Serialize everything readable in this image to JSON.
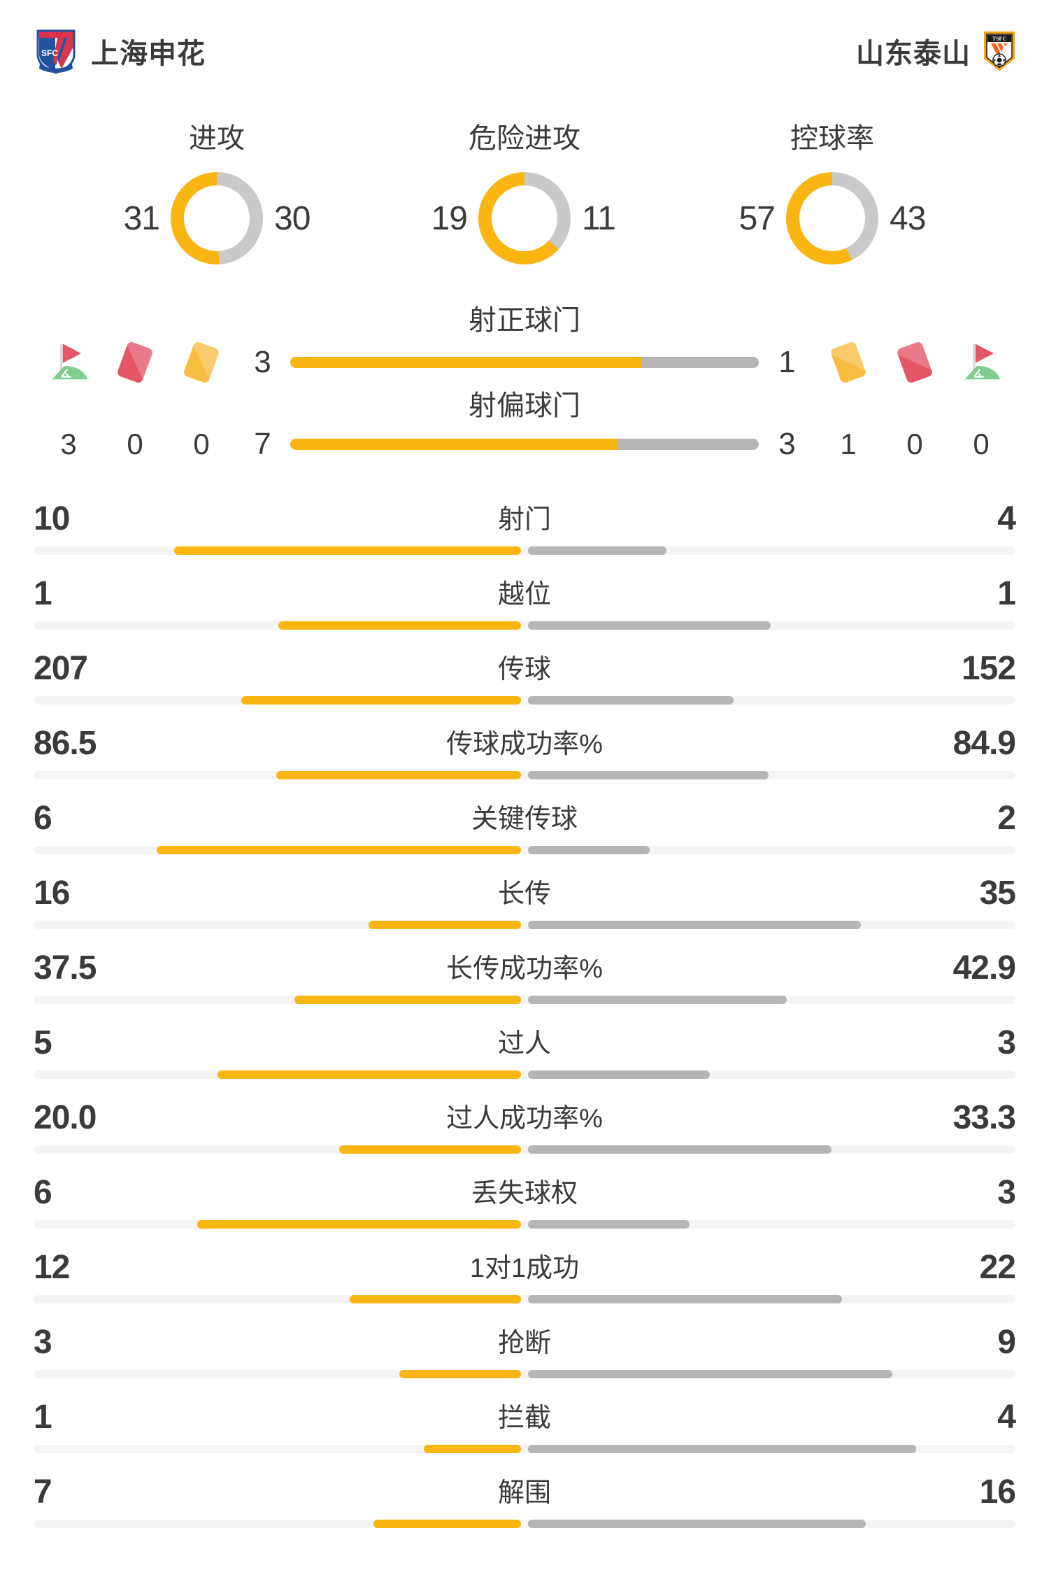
{
  "teams": {
    "home": {
      "name": "上海申花",
      "logo": "shanghai-shenhua-crest"
    },
    "away": {
      "name": "山东泰山",
      "logo": "shandong-taishan-crest"
    }
  },
  "donuts": [
    {
      "key": "attacks",
      "label": "进攻",
      "home": 31,
      "away": 30
    },
    {
      "key": "dangerous-attacks",
      "label": "危险进攻",
      "home": 19,
      "away": 11
    },
    {
      "key": "possession",
      "label": "控球率",
      "home": 57,
      "away": 43
    }
  ],
  "shots": {
    "rows": [
      {
        "key": "shots-on-target",
        "label": "射正球门",
        "home": "3",
        "away": "1"
      },
      {
        "key": "shots-off-target",
        "label": "射偏球门",
        "home": "7",
        "away": "3"
      }
    ],
    "cards_left": [
      {
        "icon": "corner-flag-icon",
        "value": "3"
      },
      {
        "icon": "red-card-icon",
        "value": "0"
      },
      {
        "icon": "yellow-card-icon",
        "value": "0"
      }
    ],
    "cards_right": [
      {
        "icon": "yellow-card-icon",
        "value": "1"
      },
      {
        "icon": "red-card-icon",
        "value": "0"
      },
      {
        "icon": "corner-flag-icon",
        "value": "0"
      }
    ]
  },
  "stats": [
    {
      "key": "shots",
      "label": "射门",
      "home": "10",
      "away": "4"
    },
    {
      "key": "offsides",
      "label": "越位",
      "home": "1",
      "away": "1"
    },
    {
      "key": "passes",
      "label": "传球",
      "home": "207",
      "away": "152"
    },
    {
      "key": "pass-success-rate",
      "label": "传球成功率%",
      "home": "86.5",
      "away": "84.9"
    },
    {
      "key": "key-passes",
      "label": "关键传球",
      "home": "6",
      "away": "2"
    },
    {
      "key": "long-balls",
      "label": "长传",
      "home": "16",
      "away": "35"
    },
    {
      "key": "long-ball-success-rate",
      "label": "长传成功率%",
      "home": "37.5",
      "away": "42.9"
    },
    {
      "key": "dribbles",
      "label": "过人",
      "home": "5",
      "away": "3"
    },
    {
      "key": "dribble-success-rate",
      "label": "过人成功率%",
      "home": "20.0",
      "away": "33.3"
    },
    {
      "key": "possession-lost",
      "label": "丢失球权",
      "home": "6",
      "away": "3"
    },
    {
      "key": "one-on-one-won",
      "label": "1对1成功",
      "home": "12",
      "away": "22"
    },
    {
      "key": "tackles",
      "label": "抢断",
      "home": "3",
      "away": "9"
    },
    {
      "key": "interceptions",
      "label": "拦截",
      "home": "1",
      "away": "4"
    },
    {
      "key": "clearances",
      "label": "解围",
      "home": "7",
      "away": "16"
    }
  ],
  "colors": {
    "yellow": "#F9B512",
    "card_yellow": "#F8BC40",
    "red": "#E45565",
    "green": "#80CB8E",
    "pole": "#D8D8D8",
    "bar_gray": "#B5B5B5",
    "donut_gray": "#C9C9C9",
    "track": "#F4F4F5",
    "text": "#3A3A3A"
  },
  "chart_data": [
    {
      "type": "pie",
      "title": "进攻",
      "labels": [
        "上海申花",
        "山东泰山"
      ],
      "values": [
        31,
        30
      ]
    },
    {
      "type": "pie",
      "title": "危险进攻",
      "labels": [
        "上海申花",
        "山东泰山"
      ],
      "values": [
        19,
        11
      ]
    },
    {
      "type": "pie",
      "title": "控球率",
      "labels": [
        "上海申花",
        "山东泰山"
      ],
      "values": [
        57,
        43
      ]
    },
    {
      "type": "bar",
      "title": "上海申花 vs 山东泰山 比赛数据",
      "categories": [
        "角球",
        "红牌",
        "黄牌",
        "射正球门",
        "射偏球门",
        "射门",
        "越位",
        "传球",
        "传球成功率%",
        "关键传球",
        "长传",
        "长传成功率%",
        "过人",
        "过人成功率%",
        "丢失球权",
        "1对1成功",
        "抢断",
        "拦截",
        "解围"
      ],
      "series": [
        {
          "name": "上海申花",
          "values": [
            3,
            0,
            0,
            3,
            7,
            10,
            1,
            207,
            86.5,
            6,
            16,
            37.5,
            5,
            20.0,
            6,
            12,
            3,
            1,
            7
          ]
        },
        {
          "name": "山东泰山",
          "values": [
            0,
            0,
            1,
            1,
            3,
            4,
            1,
            152,
            84.9,
            2,
            35,
            42.9,
            3,
            33.3,
            3,
            22,
            9,
            4,
            16
          ]
        }
      ],
      "legend_position": "top",
      "grid": false
    }
  ]
}
